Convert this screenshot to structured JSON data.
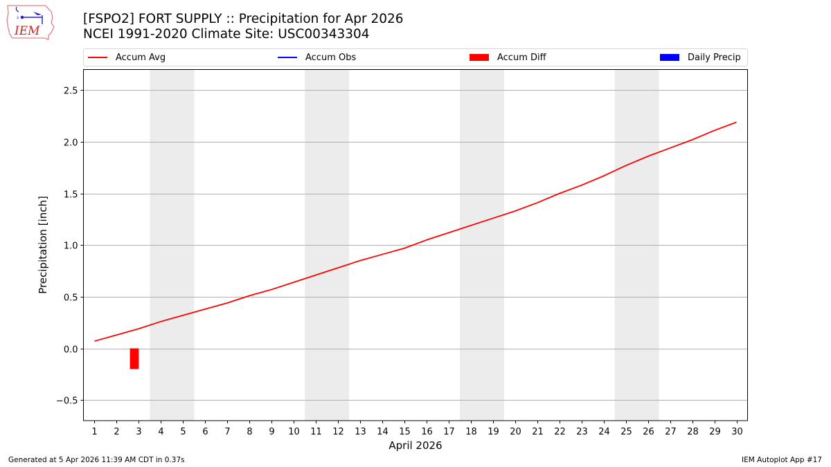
{
  "header": {
    "title_line1": "[FSPO2] FORT SUPPLY :: Precipitation for Apr 2026",
    "title_line2": "NCEI 1991-2020 Climate Site: USC00343304",
    "logo_text": "IEM"
  },
  "legend": {
    "items": [
      {
        "label": "Accum Avg",
        "kind": "line",
        "color": "#ff0000"
      },
      {
        "label": "Accum Obs",
        "kind": "line",
        "color": "#0000ff"
      },
      {
        "label": "Accum Diff",
        "kind": "patch",
        "color": "#ff0000"
      },
      {
        "label": "Daily Precip",
        "kind": "patch",
        "color": "#0000ff"
      }
    ]
  },
  "footer": {
    "generated": "Generated at 5 Apr 2026 11:39 AM CDT in 0.37s",
    "app": "IEM Autoplot App #17"
  },
  "chart_data": {
    "type": "line",
    "title": "[FSPO2] FORT SUPPLY :: Precipitation for Apr 2026",
    "subtitle": "NCEI 1991-2020 Climate Site: USC00343304",
    "xlabel": "April 2026",
    "ylabel": "Precipitation [inch]",
    "x": [
      1,
      2,
      3,
      4,
      5,
      6,
      7,
      8,
      9,
      10,
      11,
      12,
      13,
      14,
      15,
      16,
      17,
      18,
      19,
      20,
      21,
      22,
      23,
      24,
      25,
      26,
      27,
      28,
      29,
      30
    ],
    "xlim": [
      0.5,
      30.5
    ],
    "ylim": [
      -0.7,
      2.7
    ],
    "yticks": [
      -0.5,
      0.0,
      0.5,
      1.0,
      1.5,
      2.0,
      2.5
    ],
    "ytick_labels": [
      "−0.5",
      "0.0",
      "0.5",
      "1.0",
      "1.5",
      "2.0",
      "2.5"
    ],
    "grid": "y",
    "legend_position": "top",
    "weekend_shading": [
      [
        3.5,
        5.5
      ],
      [
        10.5,
        12.5
      ],
      [
        17.5,
        19.5
      ],
      [
        24.5,
        26.5
      ]
    ],
    "series": [
      {
        "name": "Accum Avg",
        "type": "line",
        "color": "#ff0000",
        "values": [
          0.07,
          0.13,
          0.19,
          0.26,
          0.32,
          0.38,
          0.44,
          0.51,
          0.57,
          0.64,
          0.71,
          0.78,
          0.85,
          0.91,
          0.97,
          1.05,
          1.12,
          1.19,
          1.26,
          1.33,
          1.41,
          1.5,
          1.58,
          1.67,
          1.77,
          1.86,
          1.94,
          2.02,
          2.11,
          2.19
        ]
      },
      {
        "name": "Accum Obs",
        "type": "line",
        "color": "#0000ff",
        "values": []
      },
      {
        "name": "Accum Diff",
        "type": "bar",
        "color": "#ff0000",
        "x": [
          3
        ],
        "values": [
          -0.2
        ]
      },
      {
        "name": "Daily Precip",
        "type": "bar",
        "color": "#0000ff",
        "values": []
      }
    ]
  }
}
